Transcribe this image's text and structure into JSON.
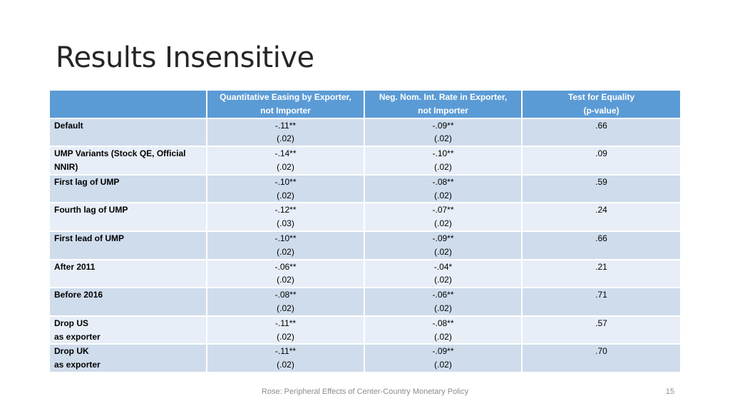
{
  "title": "Results Insensitive",
  "table": {
    "headers": [
      {
        "line1": "",
        "line2": ""
      },
      {
        "line1": "Quantitative Easing by Exporter,",
        "line2": "not Importer"
      },
      {
        "line1": "Neg. Nom. Int. Rate in Exporter,",
        "line2": "not Importer"
      },
      {
        "line1": "Test for Equality",
        "line2": "(p-value)"
      }
    ],
    "rows": [
      {
        "label1": "Default",
        "label2": "",
        "qe": "-.11**",
        "qe_se": "(.02)",
        "nnir": "-.09**",
        "nnir_se": "(.02)",
        "p": ".66"
      },
      {
        "label1": "UMP Variants (Stock QE, Official",
        "label2": "NNIR)",
        "qe": "-.14**",
        "qe_se": "(.02)",
        "nnir": "-.10**",
        "nnir_se": "(.02)",
        "p": ".09"
      },
      {
        "label1": "First lag of UMP",
        "label2": "",
        "qe": "-.10**",
        "qe_se": "(.02)",
        "nnir": "-.08**",
        "nnir_se": "(.02)",
        "p": ".59"
      },
      {
        "label1": "Fourth lag of UMP",
        "label2": "",
        "qe": "-.12**",
        "qe_se": "(.03)",
        "nnir": "-.07**",
        "nnir_se": "(.02)",
        "p": ".24"
      },
      {
        "label1": "First lead of UMP",
        "label2": "",
        "qe": "-.10**",
        "qe_se": "(.02)",
        "nnir": "-.09**",
        "nnir_se": "(.02)",
        "p": ".66"
      },
      {
        "label1": "After 2011",
        "label2": "",
        "qe": "-.06**",
        "qe_se": "(.02)",
        "nnir": "-.04*",
        "nnir_se": "(.02)",
        "p": ".21"
      },
      {
        "label1": "Before 2016",
        "label2": "",
        "qe": "-.08**",
        "qe_se": "(.02)",
        "nnir": "-.06**",
        "nnir_se": "(.02)",
        "p": ".71"
      },
      {
        "label1": "Drop US",
        "label2": "as exporter",
        "qe": "-.11**",
        "qe_se": "(.02)",
        "nnir": "-.08**",
        "nnir_se": "(.02)",
        "p": ".57"
      },
      {
        "label1": "Drop UK",
        "label2": "as exporter",
        "qe": "-.11**",
        "qe_se": "(.02)",
        "nnir": "-.09**",
        "nnir_se": "(.02)",
        "p": ".70"
      }
    ]
  },
  "footer": "Rose: Peripheral Effects of Center-Country Monetary Policy",
  "page_number": "15",
  "colors": {
    "header_bg": "#5b9bd5",
    "row_odd": "#cfdcec",
    "row_even": "#e8eef7"
  }
}
